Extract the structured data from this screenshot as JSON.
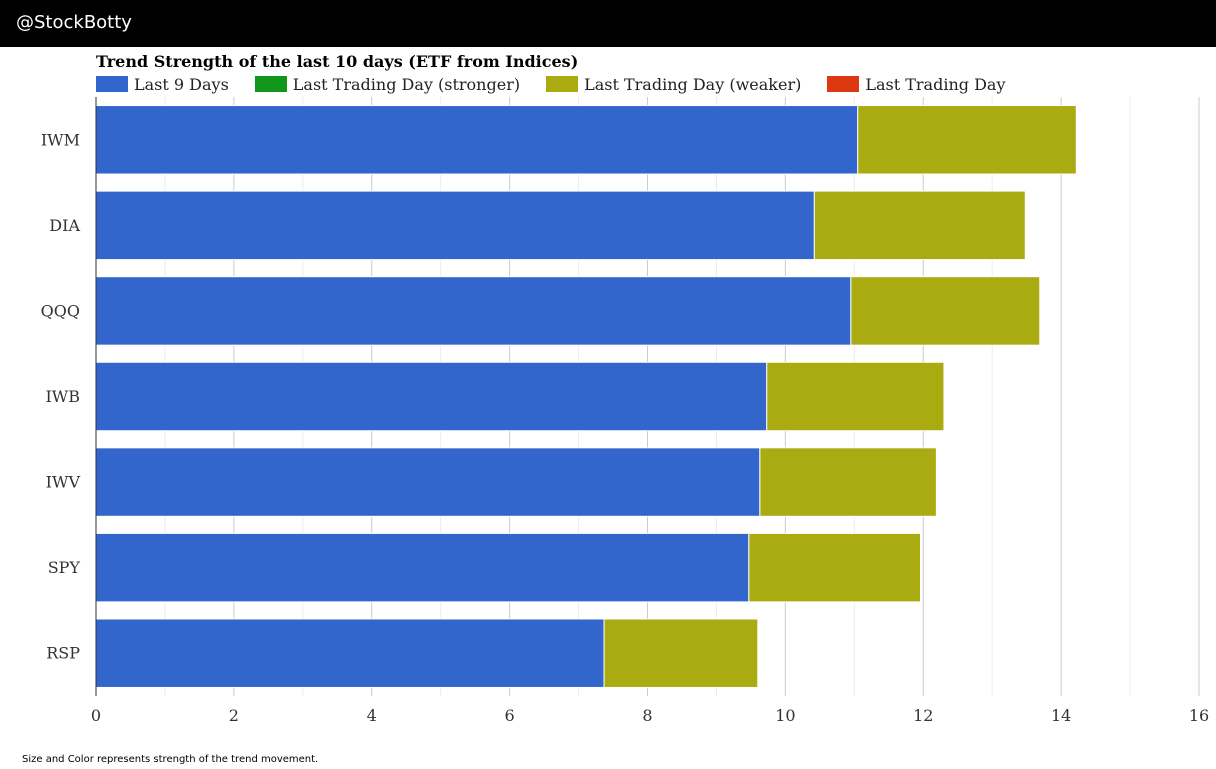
{
  "header": {
    "handle": "@StockBotty"
  },
  "legend": [
    {
      "label": "Last 9 Days",
      "color": "#3366cc"
    },
    {
      "label": "Last Trading Day (stronger)",
      "color": "#109618"
    },
    {
      "label": "Last Trading Day (weaker)",
      "color": "#aaaa11"
    },
    {
      "label": "Last Trading Day",
      "color": "#dc3912"
    }
  ],
  "footnote": "Size and Color represents strength of the trend movement.",
  "chart_data": {
    "type": "bar",
    "orientation": "horizontal",
    "stacked": true,
    "title": "Trend Strength of the last 10 days (ETF from Indices)",
    "categories": [
      "IWM",
      "DIA",
      "QQQ",
      "IWB",
      "IWV",
      "SPY",
      "RSP"
    ],
    "series": [
      {
        "name": "Last 9 Days",
        "color": "#3366cc",
        "values": [
          11.05,
          10.42,
          10.95,
          9.73,
          9.63,
          9.47,
          7.37
        ]
      },
      {
        "name": "Last Trading Day (weaker)",
        "color": "#aaaa11",
        "values": [
          3.17,
          3.06,
          2.74,
          2.57,
          2.56,
          2.49,
          2.23
        ]
      }
    ],
    "xlim": [
      0,
      16
    ],
    "xticks": [
      0,
      2,
      4,
      6,
      8,
      10,
      12,
      14,
      16
    ],
    "xlabel": "",
    "ylabel": "",
    "grid": true
  }
}
